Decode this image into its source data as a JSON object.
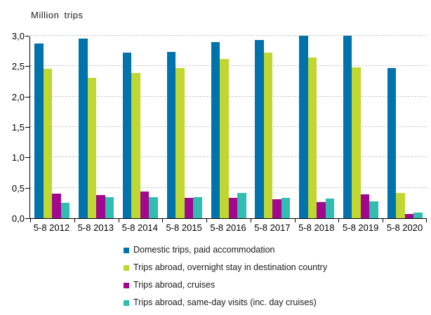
{
  "chart_data": {
    "type": "bar",
    "title": "Million trips",
    "categories": [
      "5-8 2012",
      "5-8 2013",
      "5-8 2014",
      "5-8 2015",
      "5-8 2016",
      "5-8 2017",
      "5-8 2018",
      "5-8 2019",
      "5-8 2020"
    ],
    "series": [
      {
        "name": "Domestic trips, paid accommodation",
        "color": "#0073AC",
        "values": [
          2.87,
          2.95,
          2.72,
          2.74,
          2.9,
          2.93,
          3.0,
          3.0,
          2.47
        ]
      },
      {
        "name": "Trips abroad, overnight stay in destination country",
        "color": "#BFD730",
        "values": [
          2.46,
          2.31,
          2.39,
          2.47,
          2.62,
          2.72,
          2.64,
          2.48,
          0.42
        ]
      },
      {
        "name": "Trips abroad, cruises",
        "color": "#A3078F",
        "values": [
          0.4,
          0.38,
          0.44,
          0.33,
          0.33,
          0.31,
          0.27,
          0.39,
          0.07
        ]
      },
      {
        "name": "Trips abroad, same-day visits (inc. day cruises)",
        "color": "#32BDB2",
        "values": [
          0.25,
          0.35,
          0.35,
          0.35,
          0.41,
          0.34,
          0.32,
          0.28,
          0.09
        ]
      }
    ],
    "xlabel": "",
    "ylabel": "Million trips",
    "ylim": [
      0,
      3
    ],
    "ytick_step": 0.5,
    "ytick_labels": [
      "0,0",
      "0,5",
      "1,0",
      "1,5",
      "2,0",
      "2,5",
      "3,0"
    ],
    "grid": "horizontal-dashed",
    "legend_position": "bottom-left"
  }
}
